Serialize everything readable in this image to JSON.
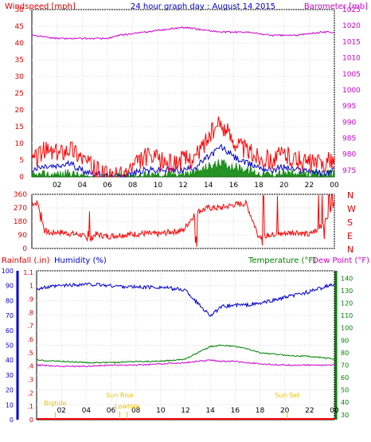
{
  "chart_data": [
    {
      "type": "line",
      "title": "24 hour graph day : August 14 2015",
      "left_label": "Windspeed [mph]",
      "right_label": "Barometer [mb]",
      "x_ticks": [
        "02",
        "04",
        "06",
        "08",
        "10",
        "12",
        "14",
        "16",
        "18",
        "20",
        "22",
        "00"
      ],
      "y_left_ticks": [
        "0",
        "5",
        "10",
        "15",
        "20",
        "25",
        "30",
        "35",
        "40",
        "45",
        "50"
      ],
      "y_right_ticks": [
        "975",
        "980",
        "985",
        "990",
        "995",
        "1000",
        "1005",
        "1010",
        "1015",
        "1020",
        "1025"
      ],
      "ylim_left": [
        0,
        50
      ],
      "ylim_right": [
        973,
        1025
      ],
      "colors": {
        "gust": "#ff0000",
        "wind": "#0000cc",
        "avg": "#008000",
        "baro": "#cc00cc"
      },
      "series": [
        {
          "key": "gust",
          "x": [
            0,
            1,
            2,
            3,
            4,
            5,
            6,
            7,
            8,
            9,
            10,
            11,
            12,
            13,
            14,
            15,
            16,
            17,
            18,
            19,
            20,
            21,
            22,
            23,
            24
          ],
          "values": [
            5,
            8,
            7,
            9,
            6,
            2,
            0,
            0,
            3,
            6,
            5,
            4,
            5,
            6,
            12,
            16,
            11,
            8,
            6,
            5,
            7,
            5,
            4,
            4,
            5
          ]
        },
        {
          "key": "wind",
          "x": [
            0,
            1,
            2,
            3,
            4,
            5,
            6,
            7,
            8,
            9,
            10,
            11,
            12,
            13,
            14,
            15,
            16,
            17,
            18,
            19,
            20,
            21,
            22,
            23,
            24
          ],
          "values": [
            2,
            3,
            3,
            4,
            2,
            1,
            0,
            0,
            1,
            2,
            2,
            2,
            2,
            3,
            6,
            9,
            6,
            4,
            3,
            2,
            3,
            2,
            2,
            1,
            2
          ]
        },
        {
          "key": "avg",
          "x": [
            0,
            1,
            2,
            3,
            4,
            5,
            6,
            7,
            8,
            9,
            10,
            11,
            12,
            13,
            14,
            15,
            16,
            17,
            18,
            19,
            20,
            21,
            22,
            23,
            24
          ],
          "values": [
            0,
            0.5,
            0.5,
            1,
            0,
            0,
            0,
            0,
            0,
            0.5,
            0.5,
            0.5,
            1,
            1,
            3,
            4,
            3,
            2,
            1,
            0.5,
            1,
            0.5,
            0.5,
            0.5,
            1
          ]
        },
        {
          "key": "baro",
          "x": [
            0,
            1,
            2,
            3,
            4,
            5,
            6,
            7,
            8,
            9,
            10,
            11,
            12,
            13,
            14,
            15,
            16,
            17,
            18,
            19,
            20,
            21,
            22,
            23,
            24
          ],
          "values": [
            1017,
            1016.5,
            1016,
            1016,
            1016,
            1016,
            1016,
            1017,
            1017.5,
            1018,
            1018.5,
            1019,
            1019.5,
            1019,
            1018.5,
            1018,
            1018,
            1018,
            1017.5,
            1017,
            1017,
            1017,
            1017.5,
            1018,
            1018
          ]
        }
      ]
    },
    {
      "type": "scatter",
      "title": "",
      "right_label": "N W S E N",
      "right_letters": [
        "N",
        "W",
        "S",
        "E",
        "N"
      ],
      "y_left_ticks": [
        "0",
        "90",
        "180",
        "270",
        "360"
      ],
      "x_ticks": [
        "02",
        "04",
        "06",
        "08",
        "10",
        "12",
        "14",
        "16",
        "18",
        "20",
        "22",
        "00"
      ],
      "ylim": [
        0,
        360
      ],
      "color": "#ff0000",
      "series": [
        {
          "name": "",
          "x": [
            0,
            0.5,
            1,
            1.5,
            2,
            3,
            4,
            4.5,
            5,
            6,
            7,
            8,
            9,
            10,
            11,
            12,
            13,
            14,
            15,
            16,
            17,
            18,
            19,
            20,
            21,
            22,
            23,
            24
          ],
          "values": [
            300,
            300,
            120,
            100,
            110,
            100,
            90,
            40,
            95,
            80,
            90,
            95,
            100,
            95,
            110,
            120,
            240,
            270,
            270,
            290,
            300,
            80,
            90,
            100,
            110,
            90,
            150,
            300
          ]
        }
      ]
    },
    {
      "type": "line",
      "left_label_rain": "Rainfall (.in)",
      "left_label_hum": "Humidity (%)",
      "right_label_temp": "Temperature (°F)",
      "right_label_dew": "Dew Point (°F)",
      "x_ticks": [
        "02",
        "04",
        "06",
        "08",
        "10",
        "12",
        "14",
        "16",
        "18",
        "20",
        "22",
        "00"
      ],
      "hum_ticks": [
        "0",
        "10",
        "20",
        "30",
        "40",
        "50",
        "60",
        "70",
        "80",
        "90",
        "100"
      ],
      "rain_ticks": [
        "0",
        ".1",
        ".2",
        ".3",
        ".4",
        ".5",
        ".6",
        ".7",
        ".8",
        ".9",
        "1",
        "1.1"
      ],
      "temp_ticks": [
        "30",
        "40",
        "50",
        "60",
        "70",
        "80",
        "90",
        "100",
        "110",
        "120",
        "130",
        "140"
      ],
      "ylim_hum": [
        0,
        100
      ],
      "ylim_temp": [
        26,
        146
      ],
      "colors": {
        "hum": "#0000cc",
        "temp": "#008000",
        "dew": "#cc00cc",
        "rain": "#ff0000",
        "events": "#e6c200"
      },
      "series": [
        {
          "key": "hum",
          "x": [
            0,
            2,
            4,
            6,
            8,
            10,
            12,
            13,
            14,
            15,
            16,
            17,
            18,
            20,
            22,
            24
          ],
          "values": [
            88,
            90,
            91,
            90,
            89,
            89,
            87,
            78,
            70,
            76,
            77,
            77,
            78,
            82,
            86,
            91
          ]
        },
        {
          "key": "temp",
          "x": [
            0,
            2,
            4,
            6,
            8,
            10,
            12,
            13,
            14,
            15,
            16,
            17,
            18,
            20,
            22,
            24
          ],
          "values": [
            74,
            73,
            72,
            72,
            73,
            73,
            75,
            80,
            85,
            86,
            85,
            83,
            80,
            78,
            77,
            75
          ]
        },
        {
          "key": "dew",
          "x": [
            0,
            2,
            4,
            6,
            8,
            10,
            12,
            13,
            14,
            15,
            16,
            17,
            18,
            20,
            22,
            24
          ],
          "values": [
            70,
            69,
            69,
            70,
            70,
            71,
            72,
            73,
            74,
            73,
            73,
            72,
            71,
            70,
            70,
            70
          ]
        }
      ],
      "events": [
        {
          "label": "Bigtide",
          "x": 1.5
        },
        {
          "label": "Lowtide",
          "x": 7.3
        },
        {
          "label": "Sun Rise",
          "x": 6.7
        },
        {
          "label": "Sun Set",
          "x": 20.2
        }
      ]
    }
  ]
}
